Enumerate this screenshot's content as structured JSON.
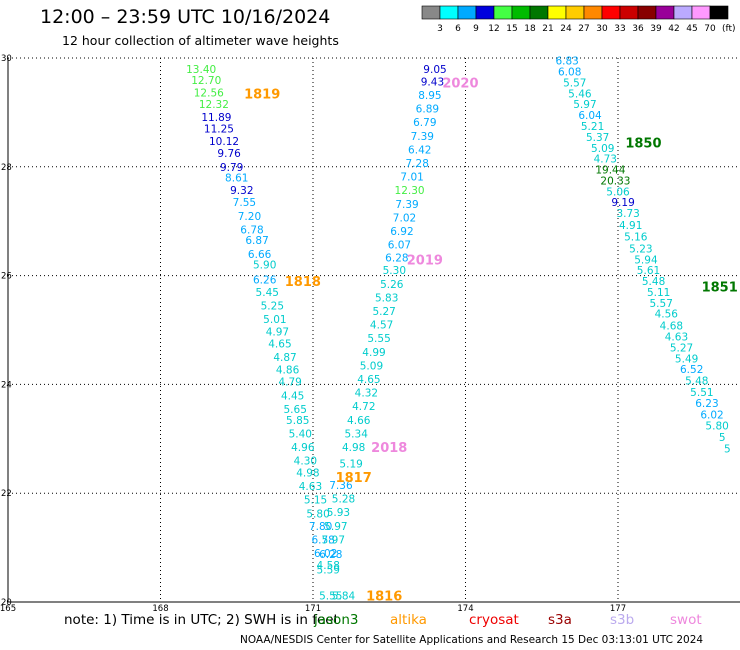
{
  "title": "12:00 – 23:59 UTC 10/16/2024",
  "subtitle": "12 hour collection of altimeter wave heights",
  "note": "note:  1) Time is in UTC;  2) SWH is in feet",
  "footer": "NOAA/NESDIS Center for Satellite Applications and Research    15 Dec 03:13:01 UTC 2024",
  "satellites": [
    {
      "name": "jason3",
      "label": "jason3",
      "color": "#007700"
    },
    {
      "name": "altika",
      "label": "altika",
      "color": "#ff9900"
    },
    {
      "name": "cryosat",
      "label": "cryosat",
      "color": "#ee0000"
    },
    {
      "name": "s3a",
      "label": "s3a",
      "color": "#990000"
    },
    {
      "name": "s3b",
      "label": "s3b",
      "color": "#bbaaee"
    },
    {
      "name": "swot",
      "label": "swot",
      "color": "#ee88dd"
    }
  ],
  "colorbar": {
    "ticks": [
      "3",
      "6",
      "9",
      "12",
      "15",
      "18",
      "21",
      "24",
      "27",
      "30",
      "33",
      "36",
      "39",
      "42",
      "45",
      "70"
    ],
    "unit": "(ft)",
    "colors": [
      "#888888",
      "#00ffff",
      "#00aaff",
      "#0000dd",
      "#44ff44",
      "#00bb00",
      "#007700",
      "#ffff00",
      "#ffcc00",
      "#ff8800",
      "#ff0000",
      "#cc0000",
      "#880000",
      "#990099",
      "#bbaaff",
      "#ff99ff",
      "#000000"
    ]
  },
  "chart_data": {
    "type": "scatter",
    "xlim": [
      165,
      179.4
    ],
    "ylim": [
      20,
      30
    ],
    "x_ticks": [
      "165",
      "168",
      "171",
      "174",
      "177"
    ],
    "y_ticks": [
      "20",
      "22",
      "24",
      "26",
      "28",
      "30"
    ],
    "grid": true,
    "label_color_by_value": true,
    "tracks": [
      {
        "id": "1819",
        "pass_color": "#ff9900",
        "label_lon": 170.0,
        "label_lat": 29.35,
        "points": [
          [
            168.8,
            29.8,
            13.4
          ],
          [
            168.9,
            29.6,
            12.7
          ],
          [
            168.95,
            29.37,
            12.56
          ],
          [
            169.05,
            29.15,
            12.32
          ],
          [
            169.1,
            28.92,
            11.89
          ],
          [
            169.15,
            28.7,
            11.25
          ],
          [
            169.25,
            28.47,
            10.12
          ],
          [
            169.35,
            28.25,
            9.76
          ],
          [
            169.4,
            28.0,
            9.79
          ],
          [
            169.5,
            27.8,
            8.61
          ],
          [
            169.6,
            27.57,
            9.32
          ],
          [
            169.65,
            27.35,
            7.55
          ],
          [
            169.75,
            27.1,
            7.2
          ],
          [
            169.8,
            26.85,
            6.78
          ],
          [
            169.9,
            26.65,
            6.87
          ],
          [
            169.95,
            26.4,
            6.66
          ],
          [
            170.05,
            26.2,
            5.9
          ]
        ]
      },
      {
        "id": "1818",
        "pass_color": "#ff9900",
        "label_lon": 170.8,
        "label_lat": 25.9,
        "points": [
          [
            170.05,
            25.93,
            6.26
          ],
          [
            170.1,
            25.7,
            5.45
          ],
          [
            170.2,
            25.45,
            5.25
          ],
          [
            170.25,
            25.2,
            5.01
          ],
          [
            170.3,
            24.97,
            4.97
          ],
          [
            170.35,
            24.75,
            4.65
          ],
          [
            170.45,
            24.5,
            4.87
          ],
          [
            170.5,
            24.27,
            4.86
          ],
          [
            170.55,
            24.05,
            4.79
          ],
          [
            170.6,
            23.8,
            4.45
          ],
          [
            170.65,
            23.55,
            5.65
          ],
          [
            170.7,
            23.35,
            5.85
          ],
          [
            170.75,
            23.1,
            5.4
          ],
          [
            170.8,
            22.85,
            4.96
          ],
          [
            170.85,
            22.6,
            4.3
          ],
          [
            170.9,
            22.38,
            4.98
          ],
          [
            170.95,
            22.13,
            4.63
          ],
          [
            171.05,
            21.88,
            5.15
          ],
          [
            171.1,
            21.63,
            5.8
          ],
          [
            171.15,
            21.4,
            7.8
          ],
          [
            171.2,
            21.15,
            6.78
          ],
          [
            171.25,
            20.9,
            6.02
          ],
          [
            171.3,
            20.68,
            4.58
          ]
        ]
      },
      {
        "id": "1817",
        "pass_color": "#ff9900",
        "label_lon": 171.8,
        "label_lat": 22.3,
        "points": [
          [
            171.55,
            22.15,
            7.36
          ],
          [
            171.6,
            21.9,
            5.28
          ],
          [
            171.5,
            21.65,
            5.93
          ],
          [
            171.45,
            21.4,
            5.97
          ],
          [
            171.4,
            21.15,
            5.97
          ],
          [
            171.35,
            20.88,
            6.28
          ],
          [
            171.3,
            20.6,
            5.59
          ]
        ]
      },
      {
        "id": "1816",
        "pass_color": "#ff9900",
        "label_lon": 172.4,
        "label_lat": 20.12,
        "points": [
          [
            171.35,
            20.12,
            5.55
          ],
          [
            171.6,
            20.12,
            5.84
          ]
        ]
      },
      {
        "id": "2018",
        "pass_color": "#ee88dd",
        "label_lon": 172.5,
        "label_lat": 22.85,
        "points": [
          [
            171.75,
            22.55,
            5.19
          ],
          [
            171.8,
            22.85,
            4.98
          ],
          [
            171.85,
            23.1,
            5.34
          ],
          [
            171.9,
            23.35,
            4.66
          ],
          [
            172.0,
            23.6,
            4.72
          ],
          [
            172.05,
            23.85,
            4.32
          ],
          [
            172.1,
            24.1,
            4.65
          ],
          [
            172.15,
            24.35,
            5.09
          ],
          [
            172.2,
            24.6,
            4.99
          ],
          [
            172.3,
            24.85,
            5.55
          ],
          [
            172.35,
            25.1,
            4.57
          ],
          [
            172.4,
            25.35,
            5.27
          ],
          [
            172.45,
            25.6,
            5.83
          ],
          [
            172.55,
            25.85,
            5.26
          ],
          [
            172.6,
            26.1,
            5.3
          ]
        ]
      },
      {
        "id": "2019",
        "pass_color": "#ee88dd",
        "label_lon": 173.2,
        "label_lat": 26.3,
        "points": [
          [
            172.65,
            26.33,
            6.28
          ],
          [
            172.7,
            26.57,
            6.07
          ],
          [
            172.75,
            26.82,
            6.92
          ],
          [
            172.8,
            27.07,
            7.02
          ],
          [
            172.85,
            27.32,
            7.39
          ],
          [
            172.9,
            27.57,
            12.3
          ],
          [
            172.95,
            27.82,
            7.01
          ],
          [
            173.05,
            28.07,
            7.28
          ],
          [
            173.1,
            28.32,
            6.42
          ],
          [
            173.15,
            28.57,
            7.39
          ],
          [
            173.2,
            28.82,
            6.79
          ],
          [
            173.25,
            29.07,
            6.89
          ],
          [
            173.3,
            29.32,
            8.95
          ],
          [
            173.35,
            29.57,
            9.43
          ],
          [
            173.4,
            29.8,
            9.05
          ]
        ]
      },
      {
        "id": "2020",
        "pass_color": "#ee88dd",
        "label_lon": 173.9,
        "label_lat": 29.55,
        "points": []
      },
      {
        "id": "1850",
        "pass_color": "#007700",
        "label_lon": 177.5,
        "label_lat": 28.45,
        "points": [
          [
            176.0,
            29.95,
            6.83
          ],
          [
            176.05,
            29.75,
            6.08
          ],
          [
            176.15,
            29.55,
            5.57
          ],
          [
            176.25,
            29.35,
            5.46
          ],
          [
            176.35,
            29.15,
            5.97
          ],
          [
            176.45,
            28.95,
            6.04
          ],
          [
            176.5,
            28.75,
            5.21
          ],
          [
            176.6,
            28.55,
            5.37
          ],
          [
            176.7,
            28.35,
            5.09
          ],
          [
            176.75,
            28.15,
            4.73
          ],
          [
            176.85,
            27.95,
            19.44
          ],
          [
            176.95,
            27.75,
            20.33
          ],
          [
            177.0,
            27.55,
            5.06
          ],
          [
            177.1,
            27.35,
            9.19
          ],
          [
            177.2,
            27.15,
            3.73
          ],
          [
            177.25,
            26.93,
            4.91
          ],
          [
            177.35,
            26.72,
            5.16
          ],
          [
            177.45,
            26.5,
            5.23
          ],
          [
            177.55,
            26.3,
            5.94
          ],
          [
            177.6,
            26.1,
            5.61
          ],
          [
            177.7,
            25.9,
            5.48
          ],
          [
            177.8,
            25.7,
            5.11
          ],
          [
            177.85,
            25.5,
            5.57
          ],
          [
            177.95,
            25.3,
            4.56
          ],
          [
            178.05,
            25.08,
            4.68
          ],
          [
            178.15,
            24.88,
            4.63
          ],
          [
            178.25,
            24.68,
            5.27
          ],
          [
            178.35,
            24.48,
            5.49
          ],
          [
            178.45,
            24.28,
            6.52
          ],
          [
            178.55,
            24.07,
            5.48
          ],
          [
            178.65,
            23.86,
            5.51
          ],
          [
            178.75,
            23.66,
            6.23
          ],
          [
            178.85,
            23.45,
            6.02
          ],
          [
            178.95,
            23.24,
            5.8
          ],
          [
            179.05,
            23.03,
            5
          ],
          [
            179.15,
            22.82,
            5
          ]
        ]
      },
      {
        "id": "1851",
        "pass_color": "#007700",
        "label_lon": 179.0,
        "label_lat": 25.8,
        "points": []
      }
    ]
  }
}
